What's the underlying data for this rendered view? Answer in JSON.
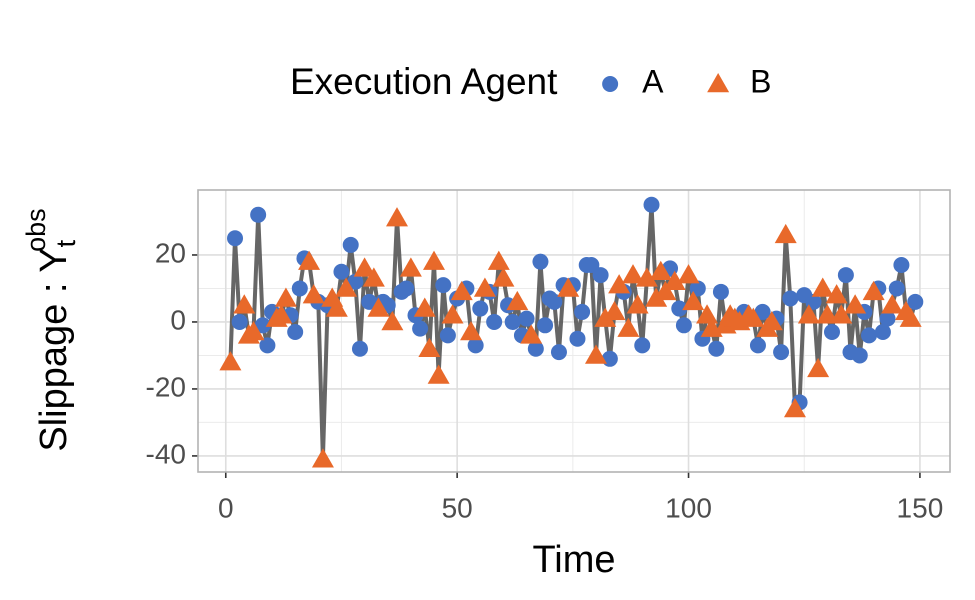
{
  "chart_data": {
    "type": "line",
    "legend_title": "Execution Agent",
    "legend_position": "top",
    "xlabel": "Time",
    "ylabel": "Slippage : Y",
    "ylabel_subscript": "t",
    "ylabel_superscript": "obs",
    "line_color": "#555555",
    "grid": true,
    "xlim": [
      -6,
      156.5
    ],
    "ylim": [
      -44.8,
      39.4
    ],
    "xticks": [
      0,
      50,
      100,
      150
    ],
    "yticks": [
      -40,
      -20,
      0,
      20
    ],
    "x": [
      1,
      2,
      3,
      4,
      5,
      6,
      7,
      8,
      9,
      10,
      11,
      12,
      13,
      14,
      15,
      16,
      17,
      18,
      19,
      20,
      21,
      22,
      23,
      24,
      25,
      26,
      27,
      28,
      29,
      30,
      31,
      32,
      33,
      34,
      35,
      36,
      37,
      38,
      39,
      40,
      41,
      42,
      43,
      44,
      45,
      46,
      47,
      48,
      49,
      50,
      51,
      52,
      53,
      54,
      55,
      56,
      57,
      58,
      59,
      60,
      61,
      62,
      63,
      64,
      65,
      66,
      67,
      68,
      69,
      70,
      71,
      72,
      73,
      74,
      75,
      76,
      77,
      78,
      79,
      80,
      81,
      82,
      83,
      84,
      85,
      86,
      87,
      88,
      89,
      90,
      91,
      92,
      93,
      94,
      95,
      96,
      97,
      98,
      99,
      100,
      101,
      102,
      103,
      104,
      105,
      106,
      107,
      108,
      109,
      110,
      111,
      112,
      113,
      114,
      115,
      116,
      117,
      118,
      119,
      120,
      121,
      122,
      123,
      124,
      125,
      126,
      127,
      128,
      129,
      130,
      131,
      132,
      133,
      134,
      135,
      136,
      137,
      138,
      139,
      140,
      141,
      142,
      143,
      144,
      145,
      146,
      147,
      148,
      149
    ],
    "series": [
      {
        "name": "A",
        "color": "#4472C4",
        "marker": "circle",
        "values": [
          null,
          25,
          0,
          null,
          null,
          null,
          32,
          -1,
          -7,
          3,
          null,
          null,
          null,
          2,
          -3,
          10,
          19,
          null,
          null,
          6,
          null,
          5,
          null,
          null,
          15,
          null,
          23,
          12,
          -8,
          null,
          6,
          null,
          null,
          6,
          5,
          null,
          null,
          9,
          10,
          null,
          2,
          -2,
          null,
          null,
          null,
          null,
          11,
          -4,
          null,
          7,
          null,
          10,
          null,
          -7,
          4,
          null,
          9,
          0,
          null,
          null,
          5,
          0,
          null,
          -4,
          1,
          null,
          -8,
          18,
          -1,
          7,
          6,
          -9,
          11,
          null,
          11,
          -5,
          3,
          17,
          17,
          null,
          14,
          null,
          -11,
          null,
          null,
          9,
          null,
          null,
          null,
          -7,
          null,
          35,
          null,
          null,
          null,
          16,
          null,
          4,
          -1,
          null,
          null,
          10,
          -5,
          null,
          null,
          -8,
          9,
          null,
          null,
          null,
          null,
          3,
          null,
          null,
          -7,
          3,
          null,
          null,
          1,
          -9,
          null,
          7,
          null,
          -24,
          8,
          null,
          6,
          null,
          null,
          null,
          -3,
          null,
          null,
          14,
          -9,
          null,
          -10,
          3,
          -4,
          null,
          10,
          -3,
          1,
          null,
          10,
          17,
          null,
          null,
          6
        ]
      },
      {
        "name": "B",
        "color": "#E8692A",
        "marker": "triangle",
        "values": [
          -12,
          null,
          null,
          5,
          -4,
          -3,
          null,
          null,
          null,
          null,
          1,
          2,
          7,
          null,
          null,
          null,
          null,
          18,
          8,
          null,
          -41,
          null,
          7,
          4,
          null,
          10,
          null,
          null,
          null,
          16,
          null,
          13,
          4,
          null,
          null,
          0,
          31,
          null,
          null,
          16,
          null,
          null,
          4,
          -8,
          18,
          -16,
          null,
          null,
          2,
          null,
          9,
          null,
          -3,
          null,
          null,
          10,
          null,
          null,
          18,
          13,
          null,
          null,
          6,
          null,
          null,
          -4,
          null,
          null,
          null,
          null,
          null,
          null,
          null,
          10,
          null,
          null,
          null,
          null,
          null,
          -10,
          null,
          1,
          null,
          3,
          11,
          null,
          -2,
          14,
          5,
          null,
          13,
          null,
          7,
          15,
          9,
          null,
          12,
          null,
          null,
          14,
          6,
          null,
          null,
          2,
          -2,
          null,
          null,
          -1,
          2,
          1,
          0,
          null,
          2,
          1,
          null,
          null,
          -2,
          0,
          null,
          null,
          26,
          null,
          -26,
          null,
          null,
          2,
          null,
          -14,
          10,
          2,
          null,
          8,
          2,
          null,
          null,
          5,
          null,
          null,
          null,
          9,
          null,
          null,
          null,
          5,
          null,
          null,
          3,
          1,
          null
        ]
      }
    ]
  }
}
